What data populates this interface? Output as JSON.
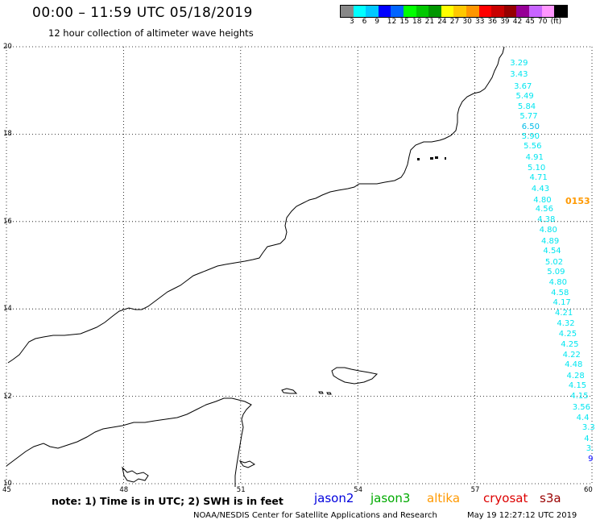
{
  "header": {
    "title": "00:00 – 11:59 UTC 05/18/2019",
    "subtitle": "12 hour collection of altimeter wave heights"
  },
  "legend": {
    "colors": [
      "#888888",
      "#00ffff",
      "#00c8ff",
      "#0000ff",
      "#0064ff",
      "#00ff00",
      "#00c800",
      "#009600",
      "#ffff00",
      "#ffc800",
      "#ff9600",
      "#ff0000",
      "#c80000",
      "#960000",
      "#960096",
      "#c864ff",
      "#ff96ff",
      "#000000"
    ],
    "labels": [
      "3",
      "6",
      "9",
      "12",
      "15",
      "18",
      "21",
      "24",
      "27",
      "30",
      "33",
      "36",
      "39",
      "42",
      "45",
      "70",
      "(ft)"
    ]
  },
  "axes": {
    "lat_labels": [
      "20",
      "18",
      "16",
      "14",
      "12",
      "10"
    ],
    "lon_labels": [
      "45",
      "48",
      "51",
      "54",
      "57",
      "60"
    ]
  },
  "wave_values": [
    {
      "text": "3.29",
      "color": "#00e6f0",
      "lon": 57.9,
      "lat": 19.62
    },
    {
      "text": "3.43",
      "color": "#00e6f0",
      "lon": 57.9,
      "lat": 19.35
    },
    {
      "text": "3.67",
      "color": "#00e6f0",
      "lon": 58.0,
      "lat": 19.08
    },
    {
      "text": "5.49",
      "color": "#00e6f0",
      "lon": 58.05,
      "lat": 18.86
    },
    {
      "text": "5.84",
      "color": "#00e6f0",
      "lon": 58.1,
      "lat": 18.62
    },
    {
      "text": "5.77",
      "color": "#00e6f0",
      "lon": 58.15,
      "lat": 18.39
    },
    {
      "text": "6.50",
      "color": "#00bbe8",
      "lon": 58.2,
      "lat": 18.15
    },
    {
      "text": "5.90",
      "color": "#00e6f0",
      "lon": 58.2,
      "lat": 17.94
    },
    {
      "text": "5.56",
      "color": "#00e6f0",
      "lon": 58.25,
      "lat": 17.71
    },
    {
      "text": "4.91",
      "color": "#00e6f0",
      "lon": 58.3,
      "lat": 17.46
    },
    {
      "text": "5.10",
      "color": "#00e6f0",
      "lon": 58.35,
      "lat": 17.22
    },
    {
      "text": "4.71",
      "color": "#00e6f0",
      "lon": 58.4,
      "lat": 16.99
    },
    {
      "text": "4.43",
      "color": "#00e6f0",
      "lon": 58.45,
      "lat": 16.74
    },
    {
      "text": "4.80",
      "color": "#00e6f0",
      "lon": 58.5,
      "lat": 16.48
    },
    {
      "text": "4.56",
      "color": "#00e6f0",
      "lon": 58.55,
      "lat": 16.27
    },
    {
      "text": "4.38",
      "color": "#00e6f0",
      "lon": 58.6,
      "lat": 16.03
    },
    {
      "text": "4.80",
      "color": "#00e6f0",
      "lon": 58.65,
      "lat": 15.79
    },
    {
      "text": "4.89",
      "color": "#00e6f0",
      "lon": 58.7,
      "lat": 15.54
    },
    {
      "text": "4.54",
      "color": "#00e6f0",
      "lon": 58.75,
      "lat": 15.31
    },
    {
      "text": "5.02",
      "color": "#00e6f0",
      "lon": 58.8,
      "lat": 15.06
    },
    {
      "text": "5.09",
      "color": "#00e6f0",
      "lon": 58.85,
      "lat": 14.84
    },
    {
      "text": "4.80",
      "color": "#00e6f0",
      "lon": 58.9,
      "lat": 14.6
    },
    {
      "text": "4.58",
      "color": "#00e6f0",
      "lon": 58.95,
      "lat": 14.35
    },
    {
      "text": "4.17",
      "color": "#00e6f0",
      "lon": 59.0,
      "lat": 14.14
    },
    {
      "text": "4.21",
      "color": "#00e6f0",
      "lon": 59.05,
      "lat": 13.89
    },
    {
      "text": "4.32",
      "color": "#00e6f0",
      "lon": 59.1,
      "lat": 13.66
    },
    {
      "text": "4.25",
      "color": "#00e6f0",
      "lon": 59.15,
      "lat": 13.42
    },
    {
      "text": "4.25",
      "color": "#00e6f0",
      "lon": 59.2,
      "lat": 13.18
    },
    {
      "text": "4.22",
      "color": "#00e6f0",
      "lon": 59.25,
      "lat": 12.93
    },
    {
      "text": "4.48",
      "color": "#00e6f0",
      "lon": 59.3,
      "lat": 12.71
    },
    {
      "text": "4.28",
      "color": "#00e6f0",
      "lon": 59.35,
      "lat": 12.46
    },
    {
      "text": "4.15",
      "color": "#00e6f0",
      "lon": 59.4,
      "lat": 12.23
    },
    {
      "text": "4.15",
      "color": "#00e6f0",
      "lon": 59.45,
      "lat": 11.99
    },
    {
      "text": "3.56",
      "color": "#00e6f0",
      "lon": 59.5,
      "lat": 11.74
    },
    {
      "text": "4.4",
      "color": "#00e6f0",
      "lon": 59.6,
      "lat": 11.5
    },
    {
      "text": "3.3",
      "color": "#00e6f0",
      "lon": 59.75,
      "lat": 11.27
    },
    {
      "text": "4.",
      "color": "#00e6f0",
      "lon": 59.8,
      "lat": 11.02
    },
    {
      "text": "3.",
      "color": "#00e6f0",
      "lon": 59.85,
      "lat": 10.79
    },
    {
      "text": "9",
      "color": "#0000ff",
      "lon": 59.9,
      "lat": 10.55
    },
    {
      "text": "0153",
      "color": "#ff9900",
      "lon": 59.32,
      "lat": 16.48
    }
  ],
  "footer": {
    "note": "note: 1) Time is in UTC; 2) SWH is in feet",
    "satellites": [
      {
        "name": "jason2",
        "color": "#0000dd"
      },
      {
        "name": "jason3",
        "color": "#00aa00"
      },
      {
        "name": "altika",
        "color": "#ff9900"
      },
      {
        "name": "cryosat",
        "color": "#dd0000"
      },
      {
        "name": "s3a",
        "color": "#990000"
      }
    ],
    "credit_left": "NOAA/NESDIS Center for Satellite Applications and Research",
    "credit_right": "May 19 12:27:12 UTC 2019"
  }
}
